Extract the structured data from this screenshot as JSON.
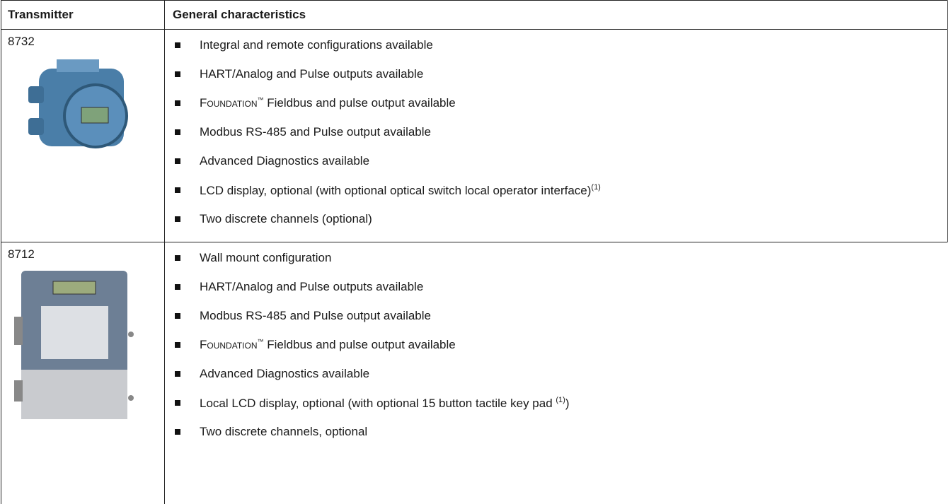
{
  "table": {
    "header": [
      "Transmitter",
      "General characteristics"
    ],
    "rows": [
      {
        "model": "8732",
        "items": [
          {
            "text": "Integral and remote configurations available"
          },
          {
            "text": "HART/Analog and Pulse outputs available"
          },
          {
            "smallcaps": "Foundation",
            "tm": "™",
            "text": " Fieldbus and pulse output available"
          },
          {
            "text": "Modbus RS-485 and Pulse output available"
          },
          {
            "text": "Advanced Diagnostics available"
          },
          {
            "text": "LCD display, optional (with optional optical switch local operator interface)",
            "sup": "(1)"
          },
          {
            "text": "Two discrete channels (optional)"
          }
        ]
      },
      {
        "model": "8712",
        "items": [
          {
            "text": "Wall mount configuration"
          },
          {
            "text": "HART/Analog and Pulse outputs available"
          },
          {
            "text": "Modbus RS-485 and Pulse output available"
          },
          {
            "smallcaps": "Foundation",
            "tm": "™",
            "text": " Fieldbus and pulse output available"
          },
          {
            "text": "Advanced Diagnostics available"
          },
          {
            "text": "Local LCD display, optional (with optional 15 button tactile key pad ",
            "sup": "(1)",
            "after": ")"
          },
          {
            "text": "Two discrete channels, optional"
          }
        ]
      }
    ]
  }
}
